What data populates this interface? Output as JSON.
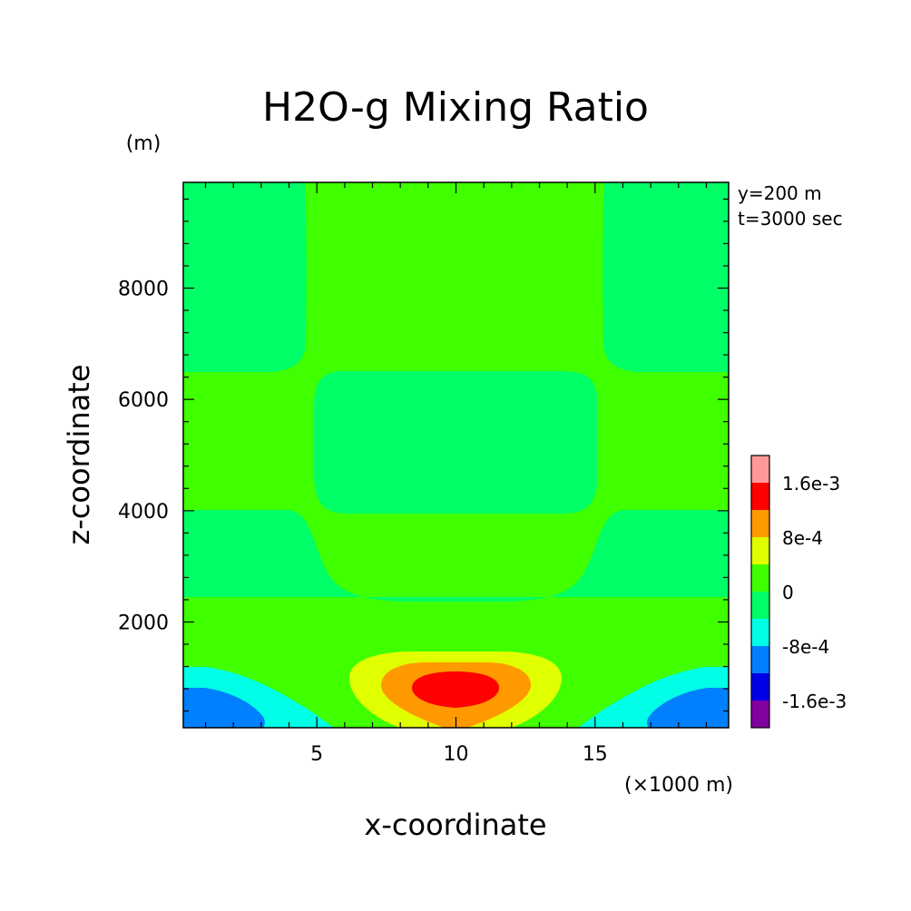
{
  "chart_data": {
    "type": "contour",
    "title": "H2O-g Mixing Ratio",
    "xlabel": "x-coordinate",
    "ylabel": "z-coordinate",
    "x_unit": "(×1000 m)",
    "y_unit": "(m)",
    "annotations": [
      "y=200 m",
      "t=3000 sec"
    ],
    "xlim": [
      0.2,
      19.8
    ],
    "ylim": [
      100,
      9900
    ],
    "x_ticks": [
      5,
      10,
      15
    ],
    "y_ticks": [
      2000,
      4000,
      6000,
      8000
    ],
    "contour_levels": [
      -0.0016,
      -0.0012,
      -0.0008,
      -0.0004,
      0,
      0.0004,
      0.0008,
      0.0012,
      0.0016,
      0.002
    ],
    "colorbar_labels": [
      {
        "value": 0.0016,
        "text": "1.6e-3"
      },
      {
        "value": 0.0008,
        "text": "8e-4"
      },
      {
        "value": 0,
        "text": "0"
      },
      {
        "value": -0.0008,
        "text": "-8e-4"
      },
      {
        "value": -0.0016,
        "text": "-1.6e-3"
      }
    ],
    "colors": [
      "#8000a0",
      "#0000e6",
      "#0080ff",
      "#00ffe6",
      "#00ff66",
      "#40ff00",
      "#e0ff00",
      "#ff9900",
      "#ff0000",
      "#ff9999"
    ],
    "regions": [
      {
        "level": "0 to 4e-4",
        "color": "#40ff00",
        "desc": "background"
      },
      {
        "level": "-4e-4 to 0",
        "color": "#00ff66",
        "desc": "upper bands and mid-level bubble"
      },
      {
        "level": "-8e-4 to -4e-4",
        "color": "#00ffe6",
        "desc": "near-surface sides"
      },
      {
        "level": "-1.2e-3 to -8e-4",
        "color": "#0080ff",
        "desc": "surface corners"
      },
      {
        "level": "4e-4 to 8e-4",
        "color": "#e0ff00",
        "desc": "surface center plume"
      },
      {
        "level": "8e-4 to 1.2e-3",
        "color": "#ff9900",
        "desc": "surface center plume"
      },
      {
        "level": "1.2e-3 to 1.6e-3",
        "color": "#ff0000",
        "desc": "center core near x=10, z=750"
      }
    ]
  }
}
